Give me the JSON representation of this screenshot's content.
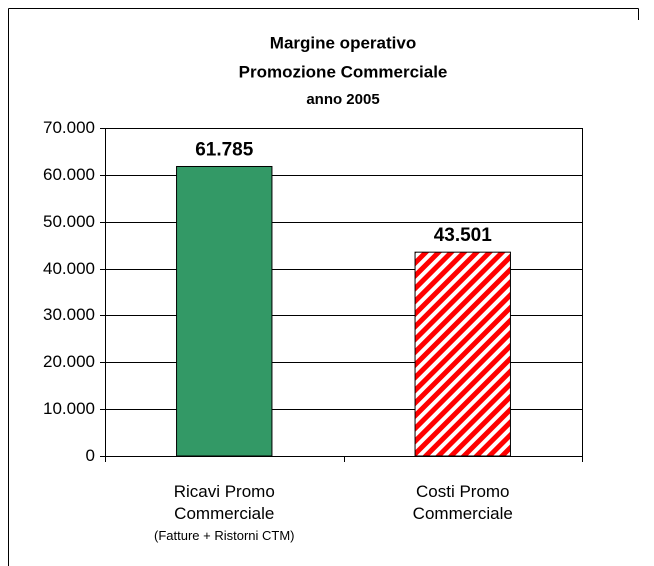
{
  "chart_data": {
    "type": "bar",
    "title": "Margine operativo",
    "subtitle": "Promozione Commerciale",
    "period": "anno 2005",
    "categories": [
      "Ricavi Promo Commerciale",
      "Costi Promo Commerciale"
    ],
    "category_notes": [
      "(Fatture + Ristorni CTM)",
      null
    ],
    "values": [
      61785,
      43501
    ],
    "value_labels": [
      "61.785",
      "43.501"
    ],
    "colors": [
      "#339966",
      "#ff0000"
    ],
    "hatched": [
      false,
      true
    ],
    "ylim": [
      0,
      70000
    ],
    "yticks": [
      0,
      {
        "value": 10000,
        "label": "10.000"
      },
      {
        "value": 20000,
        "label": "20.000"
      },
      {
        "value": 30000,
        "label": "30.000"
      },
      {
        "value": 40000,
        "label": "40.000"
      },
      {
        "value": 50000,
        "label": "50.000"
      },
      {
        "value": 60000,
        "label": "60.000"
      },
      {
        "value": 70000,
        "label": "70.000"
      }
    ],
    "grid": true
  }
}
